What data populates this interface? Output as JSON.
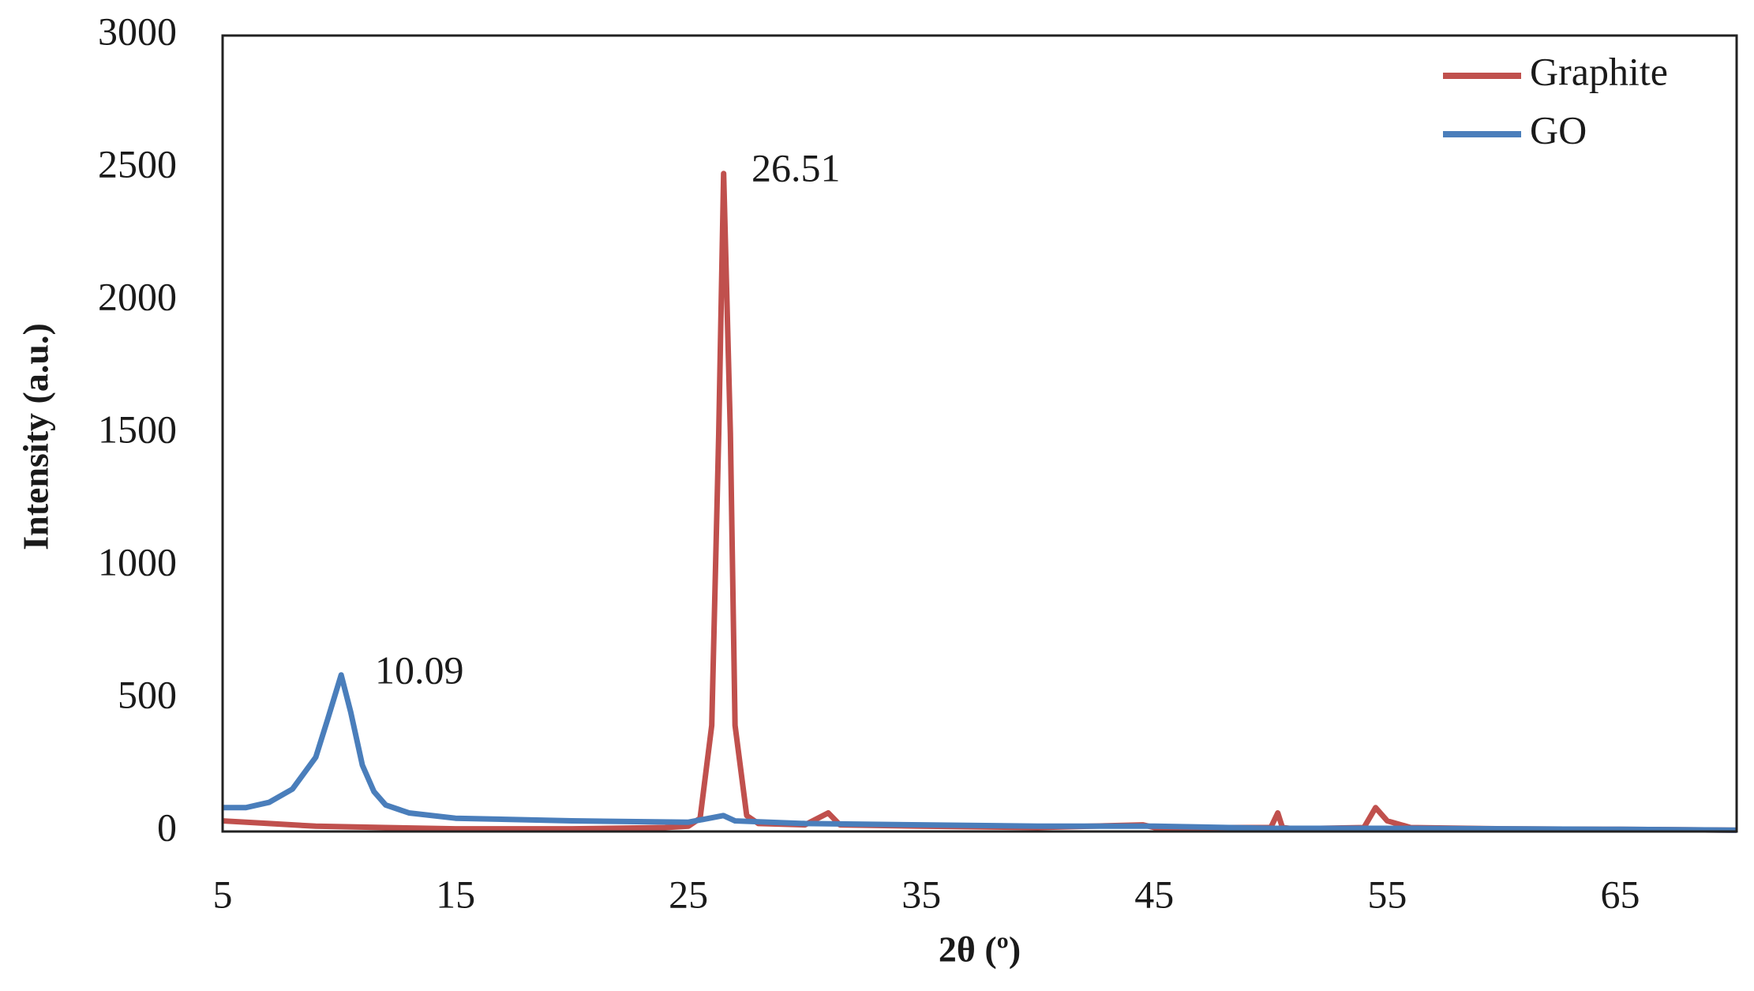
{
  "chart_data": {
    "type": "line",
    "x_label": "2θ (º)",
    "y_label": "Intensity (a.u.)",
    "xlim": [
      5,
      70
    ],
    "xticks": [
      5,
      15,
      25,
      35,
      45,
      55,
      65
    ],
    "ylim": [
      0,
      3000
    ],
    "yticks": [
      0,
      500,
      1000,
      1500,
      2000,
      2500,
      3000
    ],
    "grid": false,
    "legend": "top-right",
    "annotations": [
      "26.51",
      "10.09"
    ],
    "series": [
      {
        "name": "Graphite",
        "color": "#c0504d",
        "x": [
          5,
          7,
          9,
          12,
          15,
          20,
          24,
          25,
          25.5,
          26,
          26.3,
          26.51,
          26.8,
          27,
          27.5,
          28,
          30,
          31,
          31.5,
          35,
          40,
          44.5,
          45,
          50,
          50.3,
          50.5,
          51,
          54,
          54.5,
          55,
          56,
          60,
          65,
          70
        ],
        "values": [
          40,
          30,
          20,
          15,
          10,
          10,
          15,
          20,
          50,
          400,
          1500,
          2480,
          1500,
          400,
          60,
          30,
          25,
          70,
          25,
          20,
          15,
          25,
          15,
          15,
          70,
          15,
          10,
          15,
          90,
          40,
          15,
          10,
          8,
          5
        ]
      },
      {
        "name": "GO",
        "color": "#4a7ebb",
        "x": [
          5,
          6,
          7,
          8,
          9,
          9.5,
          10.09,
          10.5,
          11,
          11.5,
          12,
          13,
          15,
          20,
          25,
          26.5,
          27,
          30,
          35,
          40,
          45,
          50,
          55,
          60,
          65,
          70
        ],
        "values": [
          90,
          90,
          110,
          160,
          280,
          420,
          590,
          450,
          250,
          150,
          100,
          70,
          50,
          40,
          35,
          60,
          40,
          30,
          25,
          20,
          20,
          12,
          12,
          10,
          8,
          5
        ]
      }
    ]
  }
}
